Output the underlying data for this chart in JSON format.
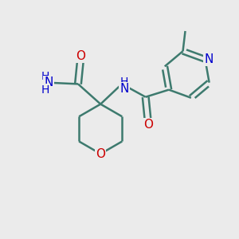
{
  "background_color": "#EBEBEB",
  "bond_color": "#3d7a6e",
  "bond_width": 1.8,
  "atom_colors": {
    "O": "#CC0000",
    "N": "#0000CC",
    "C": "#3d7a6e",
    "H": "#3d7a6e"
  },
  "font_size_atom": 11,
  "font_size_small": 9,
  "fig_size": [
    3.0,
    3.0
  ],
  "dpi": 100
}
